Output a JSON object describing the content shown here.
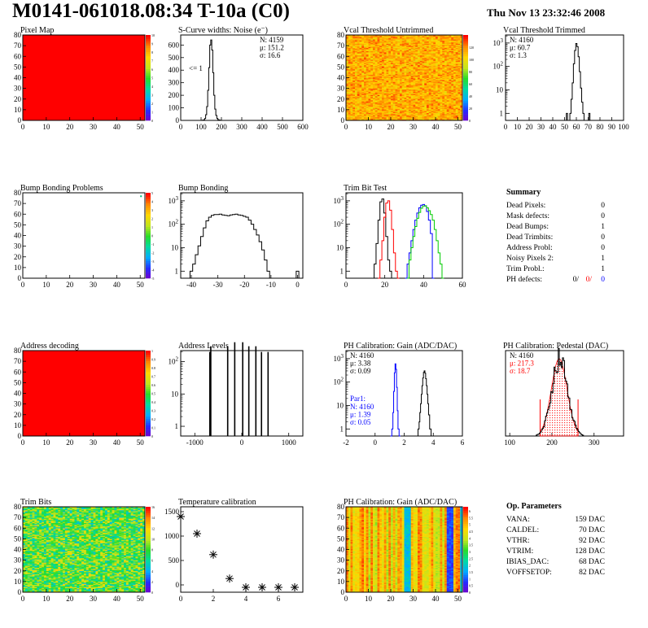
{
  "header": {
    "title": "M0141-061018.08:34 T-10a (C0)",
    "datetime": "Thu Nov 13 23:32:46 2008"
  },
  "chart_data": [
    {
      "id": "pixel-map",
      "type": "heatmap",
      "title": "Pixel Map",
      "x_ticks": [
        0,
        10,
        20,
        30,
        40,
        50
      ],
      "y_ticks": [
        0,
        10,
        20,
        30,
        40,
        50,
        60,
        70,
        80
      ],
      "xlim": [
        0,
        52
      ],
      "ylim": [
        0,
        80
      ],
      "fill": "uniform",
      "fill_color": "#ff0000",
      "color_ticks": [
        0,
        1,
        2,
        3,
        4,
        5,
        6,
        7,
        8,
        9,
        10
      ]
    },
    {
      "id": "scurve",
      "type": "line",
      "title": "S-Curve widths: Noise (e⁻)",
      "x_ticks": [
        0,
        100,
        200,
        300,
        400,
        500,
        600
      ],
      "y_ticks": [
        0,
        100,
        200,
        300,
        400,
        500,
        600
      ],
      "xlim": [
        0,
        600
      ],
      "ylim": [
        0,
        680
      ],
      "annotation": "<= 1",
      "stats": [
        "N: 4159",
        "μ: 151.2",
        "σ: 16.6"
      ],
      "x": [
        100,
        110,
        115,
        120,
        125,
        130,
        135,
        140,
        145,
        150,
        155,
        160,
        165,
        170,
        175,
        180,
        185,
        190,
        195,
        200,
        210
      ],
      "values": [
        0,
        2,
        5,
        15,
        45,
        110,
        240,
        420,
        600,
        640,
        560,
        380,
        200,
        90,
        40,
        15,
        6,
        3,
        1,
        0,
        0
      ]
    },
    {
      "id": "vcal-untrimmed",
      "type": "heatmap",
      "title": "Vcal Threshold Untrimmed",
      "x_ticks": [
        0,
        10,
        20,
        30,
        40,
        50
      ],
      "y_ticks": [
        0,
        10,
        20,
        30,
        40,
        50,
        60,
        70,
        80
      ],
      "xlim": [
        0,
        52
      ],
      "ylim": [
        0,
        80
      ],
      "fill": "noise",
      "color_ticks": [
        0,
        20,
        40,
        60,
        80,
        100,
        120
      ],
      "color_range": [
        0,
        140
      ],
      "value_range": [
        85,
        130
      ]
    },
    {
      "id": "vcal-trimmed",
      "type": "line",
      "title": "Vcal Threshold Trimmed",
      "log_y": true,
      "x_ticks": [
        0,
        10,
        20,
        30,
        40,
        50,
        60,
        70,
        80,
        90,
        100
      ],
      "y_ticks_log": [
        1,
        10,
        100,
        1000
      ],
      "xlim": [
        0,
        100
      ],
      "stats": [
        "N: 4160",
        "μ: 60.7",
        "σ:  1.3"
      ],
      "x": [
        50,
        51,
        52,
        53,
        54,
        55,
        56,
        57,
        58,
        59,
        60,
        61,
        62,
        63,
        64,
        65,
        66,
        67,
        68,
        70,
        71,
        72,
        73
      ],
      "values": [
        0,
        0,
        1,
        0,
        0,
        1,
        4,
        20,
        130,
        480,
        950,
        700,
        260,
        60,
        12,
        3,
        1,
        0,
        0,
        0,
        1,
        0,
        0
      ]
    },
    {
      "id": "bump-problems",
      "type": "heatmap",
      "title": "Bump Bonding Problems",
      "x_ticks": [
        0,
        10,
        20,
        30,
        40,
        50
      ],
      "y_ticks": [
        0,
        10,
        20,
        30,
        40,
        50,
        60,
        70,
        80
      ],
      "xlim": [
        0,
        52
      ],
      "ylim": [
        0,
        80
      ],
      "fill": "empty",
      "marker": [
        50,
        76
      ],
      "color_ticks": [
        -5,
        -4,
        -3,
        -2,
        -1,
        0,
        1,
        2,
        3,
        4,
        5
      ]
    },
    {
      "id": "bump-bonding",
      "type": "line",
      "title": "Bump Bonding",
      "log_y": true,
      "x_ticks": [
        -40,
        -30,
        -20,
        -10,
        0
      ],
      "y_ticks_log": [
        1,
        10,
        100,
        1000
      ],
      "xlim": [
        -44,
        2
      ],
      "x": [
        -41,
        -40,
        -39,
        -38,
        -37,
        -36,
        -35,
        -34,
        -33,
        -32,
        -31,
        -30,
        -29,
        -28,
        -27,
        -26,
        -25,
        -24,
        -23,
        -22,
        -21,
        -20,
        -19,
        -18,
        -17,
        -16,
        -15,
        -14,
        -13,
        -12,
        -11,
        -10,
        -1,
        0,
        1
      ],
      "values": [
        0,
        1,
        2,
        5,
        12,
        30,
        70,
        140,
        200,
        240,
        260,
        260,
        270,
        250,
        240,
        230,
        250,
        260,
        270,
        250,
        240,
        220,
        200,
        150,
        100,
        60,
        35,
        18,
        8,
        3,
        1,
        0,
        0,
        1,
        0
      ]
    },
    {
      "id": "trim-bit",
      "type": "line",
      "title": "Trim Bit Test",
      "log_y": true,
      "x_ticks": [
        0,
        20,
        40,
        60
      ],
      "y_ticks_log": [
        1,
        10,
        100,
        1000
      ],
      "xlim": [
        0,
        60
      ],
      "series": [
        {
          "color": "#000000",
          "x": [
            14,
            15,
            16,
            17,
            18,
            19,
            20,
            21,
            22,
            23,
            24
          ],
          "values": [
            0,
            2,
            15,
            150,
            900,
            1200,
            300,
            30,
            3,
            1,
            0
          ]
        },
        {
          "color": "#ff0000",
          "x": [
            17,
            18,
            19,
            20,
            21,
            22,
            23,
            24,
            25,
            26,
            27
          ],
          "values": [
            0,
            3,
            20,
            200,
            800,
            1000,
            400,
            60,
            6,
            1,
            0
          ]
        },
        {
          "color": "#0000ff",
          "x": [
            31,
            32,
            33,
            34,
            35,
            36,
            37,
            38,
            39,
            40,
            41,
            42,
            43,
            44,
            45
          ],
          "values": [
            0,
            2,
            6,
            20,
            60,
            150,
            300,
            500,
            650,
            700,
            600,
            350,
            150,
            40,
            0
          ]
        },
        {
          "color": "#00cc00",
          "x": [
            32,
            33,
            34,
            35,
            36,
            37,
            38,
            39,
            40,
            41,
            42,
            43,
            44,
            45,
            46,
            47,
            48,
            49,
            50
          ],
          "values": [
            0,
            3,
            10,
            30,
            80,
            180,
            320,
            480,
            600,
            620,
            500,
            380,
            260,
            150,
            60,
            20,
            6,
            2,
            0
          ]
        }
      ]
    },
    {
      "id": "summary",
      "type": "table",
      "title": "Summary",
      "rows": [
        {
          "label": "Dead Pixels:",
          "value": "0"
        },
        {
          "label": "Mask defects:",
          "value": "0"
        },
        {
          "label": "Dead Bumps:",
          "value": "1"
        },
        {
          "label": "Dead Trimbits:",
          "value": "0"
        },
        {
          "label": "Address Probl:",
          "value": "0"
        },
        {
          "label": "Noisy Pixels 2:",
          "value": "1"
        },
        {
          "label": "Trim Probl.:",
          "value": "1"
        }
      ],
      "ph_defects": {
        "label": "PH defects:",
        "values": [
          {
            "text": "0/",
            "color": "#000000"
          },
          {
            "text": "0/",
            "color": "#ff0000"
          },
          {
            "text": "0",
            "color": "#0000ff"
          }
        ]
      }
    },
    {
      "id": "address-decoding",
      "type": "heatmap",
      "title": "Address decoding",
      "x_ticks": [
        0,
        10,
        20,
        30,
        40,
        50
      ],
      "y_ticks": [
        0,
        10,
        20,
        30,
        40,
        50,
        60,
        70,
        80
      ],
      "xlim": [
        0,
        52
      ],
      "ylim": [
        0,
        80
      ],
      "fill": "uniform",
      "fill_color": "#ff0000",
      "color_ticks": [
        0,
        0.1,
        0.2,
        0.3,
        0.4,
        0.5,
        0.6,
        0.7,
        0.8,
        0.9,
        1
      ]
    },
    {
      "id": "address-levels",
      "type": "line",
      "title": "Address Levels",
      "log_y": true,
      "x_ticks": [
        -1000,
        0,
        1000
      ],
      "y_ticks_log": [
        1,
        10,
        100
      ],
      "xlim": [
        -1300,
        1300
      ],
      "spikes": [
        {
          "x": -680,
          "v": 200
        },
        {
          "x": -660,
          "v": 300
        },
        {
          "x": -300,
          "v": 300
        },
        {
          "x": -150,
          "v": 400
        },
        {
          "x": 20,
          "v": 400
        },
        {
          "x": 150,
          "v": 300
        },
        {
          "x": 300,
          "v": 300
        },
        {
          "x": 420,
          "v": 200
        },
        {
          "x": 560,
          "v": 200
        }
      ]
    },
    {
      "id": "ph-gain",
      "type": "line",
      "title": "PH Calibration: Gain (ADC/DAC)",
      "log_y": true,
      "x_ticks": [
        -2,
        0,
        2,
        4,
        6
      ],
      "y_ticks_log": [
        1,
        10,
        100,
        1000
      ],
      "xlim": [
        -2,
        6
      ],
      "stats": [
        "N: 4160",
        "μ: 3.38",
        "σ: 0.09"
      ],
      "stats2_label": "Par1:",
      "stats2": [
        "N: 4160",
        "μ: 1.39",
        "σ: 0.05"
      ],
      "series": [
        {
          "color": "#0000ff",
          "x": [
            1.1,
            1.2,
            1.25,
            1.3,
            1.35,
            1.4,
            1.45,
            1.5,
            1.55,
            1.6,
            1.7
          ],
          "values": [
            0,
            1,
            5,
            40,
            250,
            600,
            350,
            60,
            6,
            1,
            0
          ]
        },
        {
          "color": "#000000",
          "x": [
            2.9,
            3.0,
            3.05,
            3.1,
            3.15,
            3.2,
            3.25,
            3.3,
            3.35,
            3.4,
            3.45,
            3.5,
            3.55,
            3.6,
            3.65,
            3.7,
            3.8,
            3.9
          ],
          "values": [
            0,
            1,
            2,
            5,
            12,
            30,
            70,
            150,
            260,
            300,
            240,
            140,
            70,
            30,
            12,
            4,
            1,
            0
          ]
        }
      ]
    },
    {
      "id": "ph-pedestal",
      "type": "line",
      "title": "PH Calibration: Pedestal (DAC)",
      "x_ticks": [
        100,
        200,
        300
      ],
      "xlim": [
        90,
        370
      ],
      "ylim": [
        0,
        105
      ],
      "stats": [
        "N: 4160",
        "μ: 217.3",
        "σ: 18.7"
      ],
      "stats_colors": [
        "#000000",
        "#ff0000",
        "#ff0000"
      ],
      "fit_mean": 217.3,
      "fit_sigma": 18.7,
      "fit_peak": 95,
      "fit_range": [
        172,
        262
      ]
    },
    {
      "id": "trim-bits",
      "type": "heatmap",
      "title": "Trim Bits",
      "x_ticks": [
        0,
        10,
        20,
        30,
        40,
        50
      ],
      "y_ticks": [
        0,
        10,
        20,
        30,
        40,
        50,
        60,
        70,
        80
      ],
      "xlim": [
        0,
        52
      ],
      "ylim": [
        0,
        80
      ],
      "fill": "noise",
      "color_ticks": [
        0,
        2,
        4,
        6,
        8,
        10,
        12,
        14,
        16
      ],
      "color_range": [
        0,
        16
      ],
      "value_range": [
        2,
        12
      ]
    },
    {
      "id": "temperature",
      "type": "scatter",
      "title": "Temperature calibration",
      "x_ticks": [
        0,
        2,
        4,
        6
      ],
      "y_ticks": [
        0,
        500,
        1000,
        1500
      ],
      "xlim": [
        0,
        7.5
      ],
      "ylim": [
        -150,
        1600
      ],
      "x": [
        0,
        1,
        2,
        3,
        4,
        5,
        6,
        7
      ],
      "values": [
        1400,
        1050,
        620,
        130,
        -50,
        -50,
        -50,
        -50
      ]
    },
    {
      "id": "ph-gain-map",
      "type": "heatmap",
      "title": "PH Calibration: Gain (ADC/DAC)",
      "x_ticks": [
        0,
        10,
        20,
        30,
        40,
        50
      ],
      "y_ticks": [
        0,
        10,
        20,
        30,
        40,
        50,
        60,
        70,
        80
      ],
      "xlim": [
        0,
        52
      ],
      "ylim": [
        0,
        80
      ],
      "fill": "columns",
      "color_ticks": [
        0,
        0.5,
        1,
        1.5,
        2,
        2.5,
        3,
        3.5,
        4,
        4.5,
        5,
        5.5,
        6
      ],
      "color_range": [
        0,
        6.3
      ]
    },
    {
      "id": "op-params",
      "type": "table",
      "title": "Op. Parameters",
      "rows": [
        {
          "label": "VANA:",
          "value": "159 DAC"
        },
        {
          "label": "CALDEL:",
          "value": "70 DAC"
        },
        {
          "label": "VTHR:",
          "value": "92 DAC"
        },
        {
          "label": "VTRIM:",
          "value": "128 DAC"
        },
        {
          "label": "IBIAS_DAC:",
          "value": "68 DAC"
        },
        {
          "label": "VOFFSETOP:",
          "value": "82 DAC"
        }
      ]
    }
  ]
}
